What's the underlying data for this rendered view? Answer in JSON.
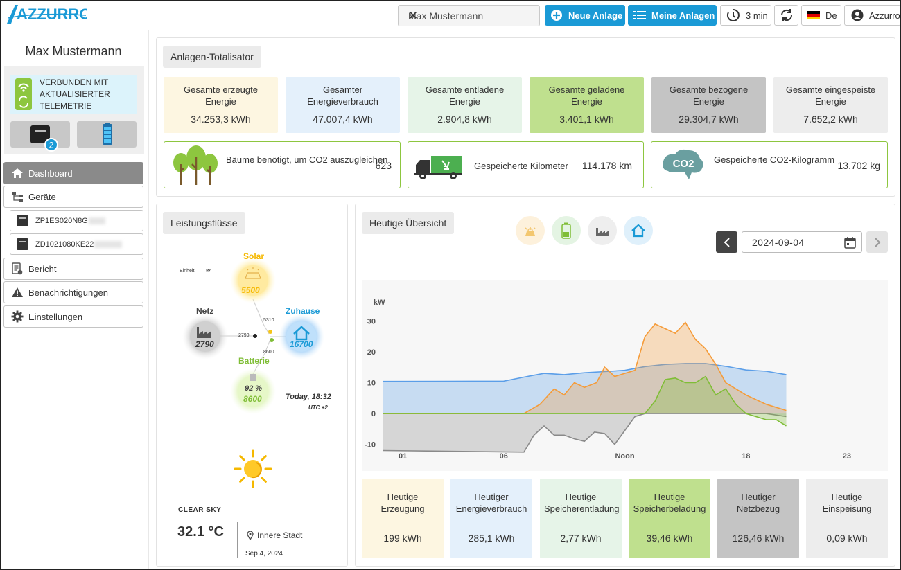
{
  "header": {
    "brand": "AZZURRO",
    "search_value": "Max Mustermann",
    "new_plant_label": "Neue Anlage",
    "my_plants_label": "Meine Anlagen",
    "refresh_interval": "3 min",
    "language": "De",
    "account_label": "Azzurro"
  },
  "sidebar": {
    "user_name": "Max Mustermann",
    "connection_status": [
      "VERBUNDEN MIT",
      "AKTUALISIERTER",
      "TELEMETRIE"
    ],
    "inverter_badge": "2",
    "nav": {
      "dashboard": "Dashboard",
      "devices": "Geräte",
      "device_1": "ZP1ES020N8G",
      "device_2": "ZD1021080KE22",
      "report": "Bericht",
      "notifications": "Benachrichtigungen",
      "settings": "Einstellungen"
    }
  },
  "totalizer": {
    "title": "Anlagen-Totalisator",
    "kpis": [
      {
        "label": "Gesamte erzeugte Energie",
        "value": "34.253,3 kWh",
        "color": "#fdf6e1"
      },
      {
        "label": "Gesamter Energieverbrauch",
        "value": "47.007,4 kWh",
        "color": "#e4f0fb"
      },
      {
        "label": "Gesamte entladene Energie",
        "value": "2.904,8 kWh",
        "color": "#e6f4e8"
      },
      {
        "label": "Gesamte geladene Energie",
        "value": "3.401,1 kWh",
        "color": "#bfe08e"
      },
      {
        "label": "Gesamte bezogene Energie",
        "value": "29.304,7 kWh",
        "color": "#c4c4c4"
      },
      {
        "label": "Gesamte eingespeiste Energie",
        "value": "7.652,2 kWh",
        "color": "#ededed"
      }
    ],
    "eco": [
      {
        "label": "Bäume benötigt, um CO2 auszugleichen",
        "value": "623",
        "icon": "trees-icon"
      },
      {
        "label": "Gespeicherte Kilometer",
        "value": "114.178 km",
        "icon": "truck-icon"
      },
      {
        "label": "Gespeicherte CO2-Kilogramm",
        "value": "13.702 kg",
        "icon": "co2-cloud-icon"
      }
    ]
  },
  "flows": {
    "title": "Leistungsflüsse",
    "unit_label": "Einheit",
    "unit": "W",
    "solar": {
      "label": "Solar",
      "value": "5500"
    },
    "grid": {
      "label": "Netz",
      "value": "2790"
    },
    "home": {
      "label": "Zuhause",
      "value": "16700"
    },
    "battery": {
      "label": "Batterie",
      "soc": "92 %",
      "value": "8600"
    },
    "line_values": {
      "solar": "5310",
      "grid": "2790",
      "battery": "8600"
    },
    "time": "Today, 18:32",
    "timezone": "UTC +2",
    "weather": {
      "condition": "CLEAR SKY",
      "temperature": "32.1 °C",
      "location": "Innere Stadt",
      "date": "Sep 4, 2024"
    }
  },
  "overview": {
    "title": "Heutige Übersicht",
    "date": "2024-09-04",
    "daily": [
      {
        "label": "Heutige Erzeugung",
        "value": "199 kWh",
        "color": "#fdf6e1"
      },
      {
        "label": "Heutiger Energieverbrauch",
        "value": "285,1 kWh",
        "color": "#e4f0fb"
      },
      {
        "label": "Heutige Speicherentladung",
        "value": "2,77 kWh",
        "color": "#e6f4e8"
      },
      {
        "label": "Heutige Speicherbeladung",
        "value": "39,46 kWh",
        "color": "#bfe08e"
      },
      {
        "label": "Heutiger Netzbezug",
        "value": "126,46 kWh",
        "color": "#c4c4c4"
      },
      {
        "label": "Heutige Einspeisung",
        "value": "0,09 kWh",
        "color": "#ededed"
      }
    ]
  },
  "chart_data": {
    "type": "area",
    "ylabel": "kW",
    "ylim": [
      -13,
      33
    ],
    "y_ticks": [
      30,
      20,
      10,
      0,
      -10
    ],
    "x_ticks": [
      "01",
      "06",
      "Noon",
      "18",
      "23"
    ],
    "x_tick_hours": [
      1,
      6,
      12,
      18,
      23
    ],
    "xlim": [
      0,
      24
    ],
    "series": [
      {
        "name": "Verbrauch",
        "color": "#5b9ee8",
        "x": [
          0,
          6,
          7,
          8,
          9,
          10,
          11,
          12,
          13,
          14,
          15,
          16,
          17,
          18,
          19,
          20
        ],
        "values": [
          10.4,
          10.5,
          11.8,
          13,
          12.6,
          13.2,
          13.6,
          14,
          15.2,
          15.9,
          16.2,
          16.2,
          15.3,
          14.1,
          13.7,
          12.6
        ]
      },
      {
        "name": "Erzeugung",
        "color": "#f59b38",
        "x": [
          0,
          7,
          7.8,
          8.5,
          9,
          9.5,
          10,
          10.6,
          11,
          11.5,
          12,
          12.5,
          13,
          13.5,
          14,
          14.5,
          15,
          15.5,
          16,
          16.5,
          17,
          17.5,
          18,
          19,
          20
        ],
        "values": [
          0,
          0,
          3,
          8,
          6,
          10,
          8.5,
          10,
          15,
          12,
          13,
          14,
          25,
          29,
          27.5,
          26,
          29.5,
          24,
          21,
          16,
          10,
          8,
          6,
          3,
          1
        ]
      },
      {
        "name": "Batterie",
        "color": "#7fbd36",
        "x": [
          0,
          12.3,
          13,
          13.5,
          14,
          14.5,
          15,
          15.5,
          16,
          16.5,
          17,
          17.5,
          18,
          18.5,
          19,
          19.5,
          20
        ],
        "values": [
          0,
          0,
          0,
          4,
          11,
          11.5,
          10,
          10,
          12,
          6,
          8,
          3,
          0,
          -1,
          -2,
          -2,
          -4
        ]
      },
      {
        "name": "Netz",
        "color": "#8a8a8a",
        "x": [
          0,
          7,
          7.5,
          8,
          8.5,
          9,
          9.5,
          10,
          10.5,
          11,
          11.5,
          12,
          12.5,
          13,
          14,
          15,
          16,
          17,
          18,
          19,
          20
        ],
        "values": [
          -12,
          -12.5,
          -7,
          -4,
          -7,
          -7,
          -8.2,
          -9,
          -6,
          -6.5,
          -10,
          -5.5,
          -1,
          0,
          0,
          0,
          0,
          0,
          0,
          0,
          -1
        ]
      }
    ]
  }
}
